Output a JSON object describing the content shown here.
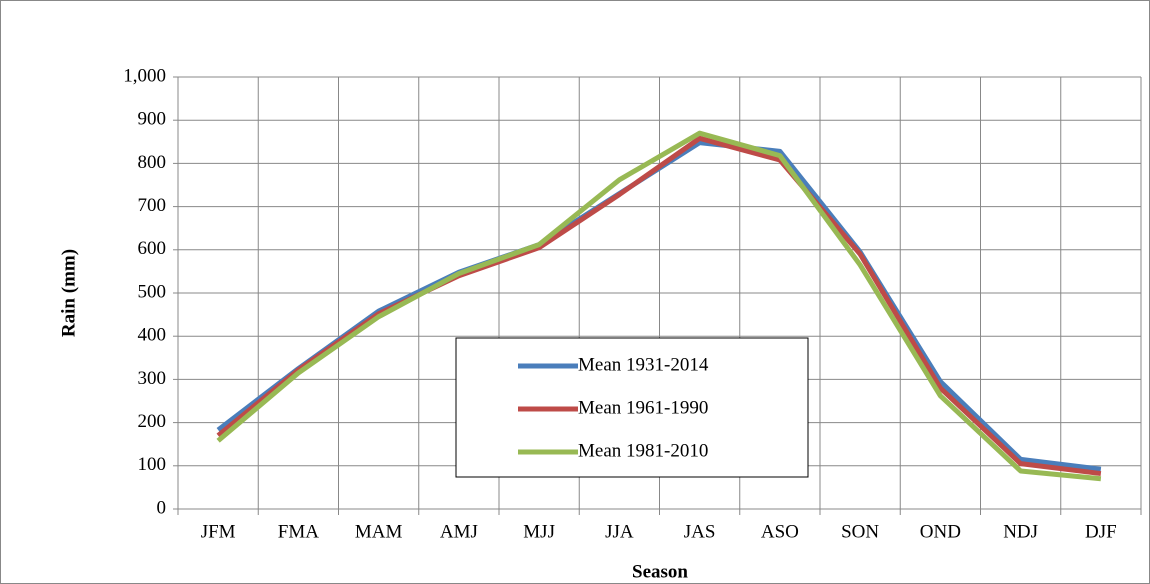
{
  "chart_data": {
    "type": "line",
    "x_label": "Season",
    "y_label": "Rain (mm)",
    "categories": [
      "JFM",
      "FMA",
      "MAM",
      "AMJ",
      "MJJ",
      "JJA",
      "JAS",
      "ASO",
      "SON",
      "OND",
      "NDJ",
      "DJF"
    ],
    "series": [
      {
        "name": "Mean 1931-2014",
        "color": "#4a7ebb",
        "values": [
          183,
          325,
          458,
          548,
          612,
          730,
          848,
          828,
          595,
          295,
          115,
          92
        ]
      },
      {
        "name": "Mean 1961-1990",
        "color": "#be4b48",
        "values": [
          170,
          322,
          452,
          540,
          605,
          728,
          858,
          808,
          590,
          280,
          105,
          82
        ]
      },
      {
        "name": "Mean 1981-2010",
        "color": "#98b954",
        "values": [
          158,
          315,
          445,
          545,
          612,
          762,
          870,
          818,
          565,
          262,
          88,
          70
        ]
      }
    ],
    "ylim": [
      0,
      1000
    ],
    "yticks": [
      0,
      100,
      200,
      300,
      400,
      500,
      600,
      700,
      800,
      900,
      {
        "value": 1000,
        "label": "1,000"
      }
    ],
    "grid": true
  }
}
